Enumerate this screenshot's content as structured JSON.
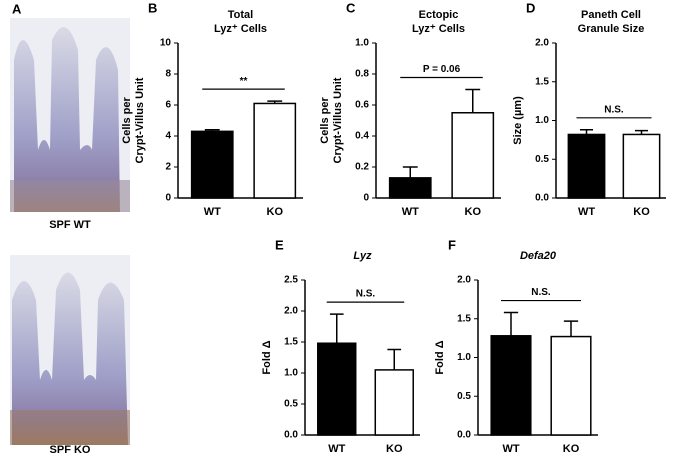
{
  "images": [
    {
      "letter": "A",
      "caption": "SPF WT"
    },
    {
      "caption": "SPF KO"
    }
  ],
  "chart_data": [
    {
      "type": "bar",
      "letter": "B",
      "title": [
        "Total",
        "Lyz⁺ Cells"
      ],
      "ylabel": [
        "Cells per",
        "Crypt-Villus Unit"
      ],
      "categories": [
        "WT",
        "KO"
      ],
      "values": [
        4.3,
        6.1
      ],
      "errors": [
        0.1,
        0.15
      ],
      "colors": [
        "#000000",
        "#ffffff"
      ],
      "ylim": [
        0,
        10
      ],
      "yticks": [
        0,
        2,
        4,
        6,
        8,
        10
      ],
      "annotation": "**"
    },
    {
      "type": "bar",
      "letter": "C",
      "title": [
        "Ectopic",
        "Lyz⁺ Cells"
      ],
      "ylabel": [
        "Cells per",
        "Crypt-Villus Unit"
      ],
      "categories": [
        "WT",
        "KO"
      ],
      "values": [
        0.13,
        0.55
      ],
      "errors": [
        0.07,
        0.15
      ],
      "colors": [
        "#000000",
        "#ffffff"
      ],
      "ylim": [
        0,
        1.0
      ],
      "yticks": [
        0,
        0.2,
        0.4,
        0.6,
        0.8,
        {
          "value": 1.0,
          "label": "1.0"
        }
      ],
      "annotation": "P = 0.06"
    },
    {
      "type": "bar",
      "letter": "D",
      "title": [
        "Paneth Cell",
        "Granule Size"
      ],
      "ylabel": [
        "Size (µm)"
      ],
      "categories": [
        "WT",
        "KO"
      ],
      "values": [
        0.82,
        0.82
      ],
      "errors": [
        0.06,
        0.05
      ],
      "colors": [
        "#000000",
        "#ffffff"
      ],
      "ylim": [
        0,
        2.0
      ],
      "yticks": [
        {
          "value": 0,
          "label": "0.0"
        },
        0.5,
        {
          "value": 1.0,
          "label": "1.0"
        },
        1.5,
        {
          "value": 2.0,
          "label": "2.0"
        }
      ],
      "annotation": "N.S."
    },
    {
      "type": "bar",
      "letter": "E",
      "title": [
        "Lyz"
      ],
      "title_italic": true,
      "ylabel": [
        "Fold Δ"
      ],
      "categories": [
        "WT",
        "KO"
      ],
      "values": [
        1.48,
        1.05
      ],
      "errors": [
        0.47,
        0.33
      ],
      "colors": [
        "#000000",
        "#ffffff"
      ],
      "ylim": [
        0,
        2.5
      ],
      "yticks": [
        {
          "value": 0,
          "label": "0.0"
        },
        0.5,
        {
          "value": 1.0,
          "label": "1.0"
        },
        1.5,
        {
          "value": 2.0,
          "label": "2.0"
        },
        2.5
      ],
      "annotation": "N.S."
    },
    {
      "type": "bar",
      "letter": "F",
      "title": [
        "Defa20"
      ],
      "title_italic": true,
      "ylabel": [
        "Fold Δ"
      ],
      "categories": [
        "WT",
        "KO"
      ],
      "values": [
        1.28,
        1.27
      ],
      "errors": [
        0.3,
        0.2
      ],
      "colors": [
        "#000000",
        "#ffffff"
      ],
      "ylim": [
        0,
        2.0
      ],
      "yticks": [
        {
          "value": 0,
          "label": "0.0"
        },
        0.5,
        {
          "value": 1.0,
          "label": "1.0"
        },
        1.5,
        {
          "value": 2.0,
          "label": "2.0"
        }
      ],
      "annotation": "N.S."
    }
  ]
}
